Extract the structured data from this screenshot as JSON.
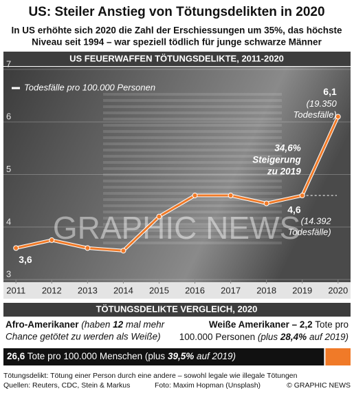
{
  "header": {
    "title": "US: Steiler Anstieg von Tötungsdelikten in 2020",
    "subtitle": [
      "In US erhöhte sich 2020 die Zahl der Erschiessungen um 35%, das höchste",
      "Niveau seit 1994 – war speziell tödlich für junge schwarze Männer"
    ]
  },
  "chart_data": [
    {
      "type": "line",
      "title": "US FEUERWAFFEN TÖTUNGSDELIKTE, 2011-2020",
      "y_label": "Todesfälle pro 100.000 Personen",
      "x": [
        2011,
        2012,
        2013,
        2014,
        2015,
        2016,
        2017,
        2018,
        2019,
        2020
      ],
      "values": [
        3.6,
        3.75,
        3.6,
        3.55,
        4.2,
        4.6,
        4.6,
        4.45,
        4.6,
        6.1
      ],
      "value_labels": [
        "3,6",
        null,
        null,
        null,
        null,
        null,
        null,
        null,
        "4,6",
        "6,1"
      ],
      "color": "#f07a28",
      "xlim": [
        2010.65,
        2020.35
      ],
      "xticks": [
        2011,
        2012,
        2013,
        2014,
        2015,
        2016,
        2017,
        2018,
        2019,
        2020
      ],
      "ylim": [
        2.95,
        7.05
      ],
      "yticks": [
        3,
        4,
        5,
        6,
        7
      ],
      "annotations": {
        "note_2019": [
          "(14.392",
          "Todesfälle)"
        ],
        "note_2020": [
          "(19.350",
          "Todesfälle)"
        ],
        "increase": [
          "34,6%",
          "Steigerung",
          "zu 2019"
        ]
      },
      "watermark": "GRAPHIC NEWS"
    },
    {
      "type": "stacked-bar",
      "title": "TÖTUNGSDELIKTE VERGLEICH, 2020",
      "xlim": [
        0,
        28.8
      ],
      "series": [
        {
          "name": "Afro-Amerikaner",
          "color": "#111111",
          "values": [
            26.6
          ],
          "value_labels": [
            "26,6"
          ],
          "note": [
            "(haben",
            "12",
            "mal mehr",
            "Chance getötet zu werden als Weiße)"
          ],
          "detail": [
            "Tote pro 100.000 Menschen (plus",
            "39,5%",
            "auf 2019)"
          ]
        },
        {
          "name": "Weiße Amerikaner",
          "color": "#f07a28",
          "values": [
            2.2
          ],
          "value_labels": [
            "2,2"
          ],
          "detail": [
            "Tote pro",
            "100.000 Personen",
            "(plus",
            "28,4%",
            "auf 2019)"
          ]
        }
      ]
    }
  ],
  "footer": {
    "definition": "Tötungsdelikt: Tötung einer Person durch eine andere – sowohl legale wie illegale Tötungen",
    "sources": "Quellen: Reuters, CDC, Stein & Markus",
    "photo": "Foto: Maxim Hopman (Unsplash)",
    "copyright": "© GRAPHIC NEWS"
  }
}
